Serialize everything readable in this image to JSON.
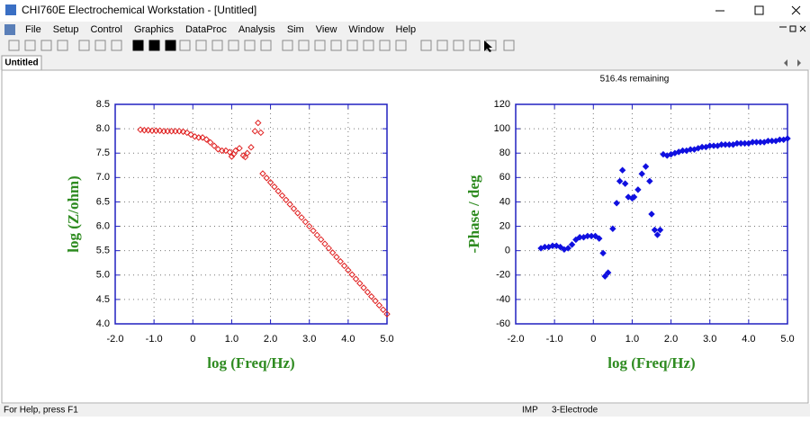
{
  "window": {
    "title": "CHI760E Electrochemical Workstation - [Untitled]",
    "menu": [
      "File",
      "Setup",
      "Control",
      "Graphics",
      "DataProc",
      "Analysis",
      "Sim",
      "View",
      "Window",
      "Help"
    ],
    "tab": "Untitled",
    "remaining": "516.4s remaining",
    "status": [
      "For Help, press F1",
      "IMP",
      "3-Electrode"
    ]
  },
  "chart_data": [
    {
      "type": "scatter",
      "marker": "open-diamond",
      "color": "#e02020",
      "grid": true,
      "xlabel": "log (Freq/Hz)",
      "ylabel": "log (Z/ohm)",
      "xlim": [
        -2,
        5
      ],
      "ylim": [
        4,
        8.5
      ],
      "xticks": [
        {
          "value": -2,
          "label": "-2.0"
        },
        {
          "value": -1,
          "label": "-1.0"
        },
        0,
        {
          "value": 1,
          "label": "1.0"
        },
        {
          "value": 2,
          "label": "2.0"
        },
        {
          "value": 3,
          "label": "3.0"
        },
        {
          "value": 4,
          "label": "4.0"
        },
        {
          "value": 5,
          "label": "5.0"
        }
      ],
      "yticks": [
        {
          "value": 4,
          "label": "4.0"
        },
        4.5,
        {
          "value": 5,
          "label": "5.0"
        },
        5.5,
        {
          "value": 6,
          "label": "6.0"
        },
        6.5,
        {
          "value": 7,
          "label": "7.0"
        },
        7.5,
        {
          "value": 8,
          "label": "8.0"
        },
        8.5
      ],
      "x": [
        -1.35,
        -1.25,
        -1.15,
        -1.05,
        -0.95,
        -0.85,
        -0.75,
        -0.65,
        -0.55,
        -0.45,
        -0.35,
        -0.25,
        -0.15,
        -0.05,
        0.05,
        0.15,
        0.25,
        0.35,
        0.45,
        0.55,
        0.65,
        0.75,
        0.85,
        0.95,
        1.0,
        1.05,
        1.1,
        1.2,
        1.3,
        1.35,
        1.4,
        1.5,
        1.6,
        1.68,
        1.75,
        1.8,
        1.9,
        2.0,
        2.1,
        2.2,
        2.3,
        2.4,
        2.5,
        2.6,
        2.7,
        2.8,
        2.9,
        3.0,
        3.1,
        3.2,
        3.3,
        3.4,
        3.5,
        3.6,
        3.7,
        3.8,
        3.9,
        4.0,
        4.1,
        4.2,
        4.3,
        4.4,
        4.5,
        4.6,
        4.7,
        4.8,
        4.9,
        5.0
      ],
      "values": [
        7.98,
        7.97,
        7.97,
        7.96,
        7.96,
        7.96,
        7.95,
        7.95,
        7.95,
        7.95,
        7.95,
        7.94,
        7.92,
        7.88,
        7.84,
        7.82,
        7.82,
        7.78,
        7.72,
        7.65,
        7.58,
        7.55,
        7.55,
        7.52,
        7.43,
        7.48,
        7.55,
        7.6,
        7.45,
        7.42,
        7.5,
        7.62,
        7.95,
        8.12,
        7.92,
        7.08,
        6.99,
        6.9,
        6.81,
        6.72,
        6.63,
        6.54,
        6.45,
        6.36,
        6.27,
        6.18,
        6.09,
        6.0,
        5.91,
        5.82,
        5.73,
        5.64,
        5.55,
        5.46,
        5.37,
        5.28,
        5.19,
        5.1,
        5.01,
        4.92,
        4.83,
        4.74,
        4.65,
        4.56,
        4.47,
        4.38,
        4.29,
        4.2
      ]
    },
    {
      "type": "scatter",
      "marker": "filled-diamond",
      "color": "#1010e0",
      "grid": true,
      "xlabel": "log (Freq/Hz)",
      "ylabel": "-Phase / deg",
      "xlim": [
        -2,
        5
      ],
      "ylim": [
        -60,
        120
      ],
      "xticks": [
        {
          "value": -2,
          "label": "-2.0"
        },
        {
          "value": -1,
          "label": "-1.0"
        },
        0,
        {
          "value": 1,
          "label": "1.0"
        },
        {
          "value": 2,
          "label": "2.0"
        },
        {
          "value": 3,
          "label": "3.0"
        },
        {
          "value": 4,
          "label": "4.0"
        },
        {
          "value": 5,
          "label": "5.0"
        }
      ],
      "yticks": [
        -60,
        -40,
        -20,
        0,
        20,
        40,
        60,
        80,
        100,
        120
      ],
      "x": [
        -1.35,
        -1.25,
        -1.15,
        -1.05,
        -0.95,
        -0.85,
        -0.75,
        -0.65,
        -0.55,
        -0.45,
        -0.35,
        -0.25,
        -0.15,
        -0.05,
        0.05,
        0.15,
        0.25,
        0.3,
        0.38,
        0.5,
        0.6,
        0.68,
        0.75,
        0.82,
        0.9,
        1.0,
        1.05,
        1.15,
        1.25,
        1.35,
        1.45,
        1.5,
        1.58,
        1.65,
        1.72,
        1.8,
        1.9,
        2.0,
        2.1,
        2.2,
        2.3,
        2.4,
        2.5,
        2.6,
        2.7,
        2.8,
        2.9,
        3.0,
        3.1,
        3.2,
        3.3,
        3.4,
        3.5,
        3.6,
        3.7,
        3.8,
        3.9,
        4.0,
        4.1,
        4.2,
        4.3,
        4.4,
        4.5,
        4.6,
        4.7,
        4.8,
        4.9,
        5.0
      ],
      "values": [
        2,
        3,
        3,
        4,
        4,
        3,
        1,
        2,
        5,
        9,
        11,
        11,
        12,
        12,
        12,
        10,
        -2,
        -21,
        -18,
        18,
        39,
        57,
        66,
        55,
        44,
        43,
        44,
        50,
        63,
        69,
        57,
        30,
        17,
        13,
        17,
        79,
        78,
        79,
        80,
        81,
        82,
        82,
        83,
        83,
        84,
        85,
        85,
        86,
        86,
        86,
        87,
        87,
        87,
        87,
        88,
        88,
        88,
        88,
        89,
        89,
        89,
        89,
        90,
        90,
        90,
        91,
        91,
        92
      ]
    }
  ]
}
